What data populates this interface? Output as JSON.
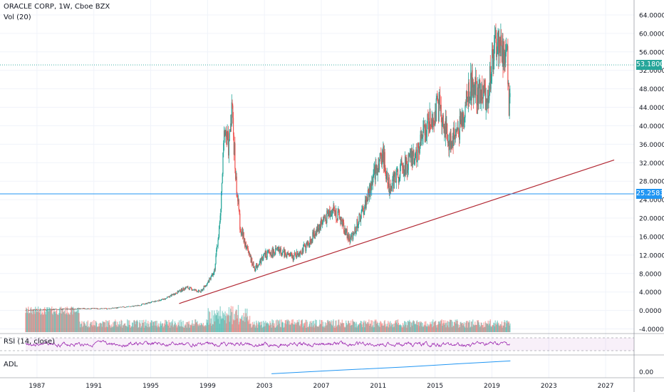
{
  "header": {
    "title": "ORACLE CORP, 1W, Cboe BZX",
    "volume_indicator": "Vol (20)"
  },
  "panes": {
    "rsi_label": "RSI (14, close)",
    "adl_label": "ADL",
    "adl_axis_label": "0.00"
  },
  "colors": {
    "up": "#26a69a",
    "down": "#ef5350",
    "rsi": "#9c27b0",
    "adl": "#2196f3",
    "trendline": "#b22833",
    "last_price_line": "#26a69a",
    "hline": "#2196f3"
  },
  "chart_data": {
    "type": "candlestick",
    "title": "ORACLE CORP, 1W, Cboe BZX",
    "x_ticks": [
      "1987",
      "1991",
      "1995",
      "1999",
      "2003",
      "2007",
      "2011",
      "2015",
      "2019",
      "2023",
      "2027"
    ],
    "y_ticks": [
      "-4.0000",
      "0.0000",
      "4.0000",
      "8.0000",
      "12.0000",
      "16.0000",
      "20.0000",
      "24.0000",
      "28.0000",
      "32.0000",
      "36.0000",
      "40.0000",
      "44.0000",
      "48.0000",
      "52.0000",
      "56.0000",
      "60.0000",
      "64.0000"
    ],
    "ylim": [
      -5,
      66
    ],
    "xlim": [
      1984.4,
      2029
    ],
    "last_price": {
      "value": 53.18,
      "label": "53.1800"
    },
    "horizontal_line": {
      "value": 25.2583,
      "label": "25.2583"
    },
    "trendline": {
      "x": [
        1997.0,
        2027.6
      ],
      "y": [
        1.5,
        32.6
      ]
    },
    "close_series": [
      {
        "x": 1986.2,
        "y": 0.1
      },
      {
        "x": 1988.0,
        "y": 0.2
      },
      {
        "x": 1990.0,
        "y": 0.4
      },
      {
        "x": 1992.0,
        "y": 0.4
      },
      {
        "x": 1994.0,
        "y": 1.0
      },
      {
        "x": 1996.0,
        "y": 2.5
      },
      {
        "x": 1997.5,
        "y": 5.0
      },
      {
        "x": 1998.5,
        "y": 4.0
      },
      {
        "x": 1999.0,
        "y": 6.0
      },
      {
        "x": 1999.5,
        "y": 9.0
      },
      {
        "x": 1999.9,
        "y": 20.0
      },
      {
        "x": 2000.2,
        "y": 40.0
      },
      {
        "x": 2000.5,
        "y": 35.0
      },
      {
        "x": 2000.7,
        "y": 45.0
      },
      {
        "x": 2001.0,
        "y": 28.0
      },
      {
        "x": 2001.3,
        "y": 18.0
      },
      {
        "x": 2001.8,
        "y": 13.0
      },
      {
        "x": 2002.3,
        "y": 9.0
      },
      {
        "x": 2003.0,
        "y": 12.0
      },
      {
        "x": 2004.0,
        "y": 13.0
      },
      {
        "x": 2005.0,
        "y": 11.5
      },
      {
        "x": 2006.0,
        "y": 14.0
      },
      {
        "x": 2007.0,
        "y": 19.0
      },
      {
        "x": 2007.8,
        "y": 22.0
      },
      {
        "x": 2008.3,
        "y": 20.0
      },
      {
        "x": 2009.0,
        "y": 15.0
      },
      {
        "x": 2010.0,
        "y": 22.0
      },
      {
        "x": 2010.8,
        "y": 30.0
      },
      {
        "x": 2011.3,
        "y": 34.0
      },
      {
        "x": 2011.8,
        "y": 27.0
      },
      {
        "x": 2012.5,
        "y": 30.0
      },
      {
        "x": 2013.5,
        "y": 33.0
      },
      {
        "x": 2014.5,
        "y": 40.0
      },
      {
        "x": 2015.3,
        "y": 44.0
      },
      {
        "x": 2016.0,
        "y": 36.0
      },
      {
        "x": 2016.8,
        "y": 40.0
      },
      {
        "x": 2017.5,
        "y": 49.0
      },
      {
        "x": 2018.0,
        "y": 47.0
      },
      {
        "x": 2018.7,
        "y": 46.0
      },
      {
        "x": 2019.1,
        "y": 55.0
      },
      {
        "x": 2019.4,
        "y": 58.0
      },
      {
        "x": 2019.8,
        "y": 55.0
      },
      {
        "x": 2020.1,
        "y": 54.0
      },
      {
        "x": 2020.2,
        "y": 42.0
      },
      {
        "x": 2020.3,
        "y": 52.0
      }
    ],
    "rsi": {
      "name": "RSI (14, close)"
    },
    "adl": {
      "name": "ADL",
      "x": [
        2003.5,
        2008.0,
        2013.0,
        2017.0,
        2020.3
      ],
      "y": [
        0.15,
        0.35,
        0.55,
        0.75,
        0.9
      ]
    }
  }
}
